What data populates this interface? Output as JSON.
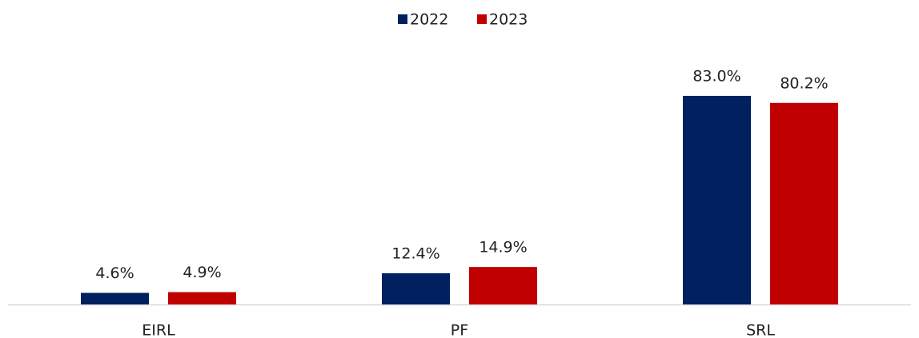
{
  "chart_data": {
    "type": "bar",
    "categories": [
      "EIRL",
      "PF",
      "SRL"
    ],
    "series": [
      {
        "name": "2022",
        "color": "#002060",
        "values": [
          4.6,
          12.4,
          83.0
        ],
        "value_labels": [
          "4.6%",
          "12.4%",
          "83.0%"
        ]
      },
      {
        "name": "2023",
        "color": "#c00000",
        "values": [
          4.9,
          14.9,
          80.2
        ],
        "value_labels": [
          "4.9%",
          "14.9%",
          "80.2%"
        ]
      }
    ],
    "legend": "top"
  }
}
